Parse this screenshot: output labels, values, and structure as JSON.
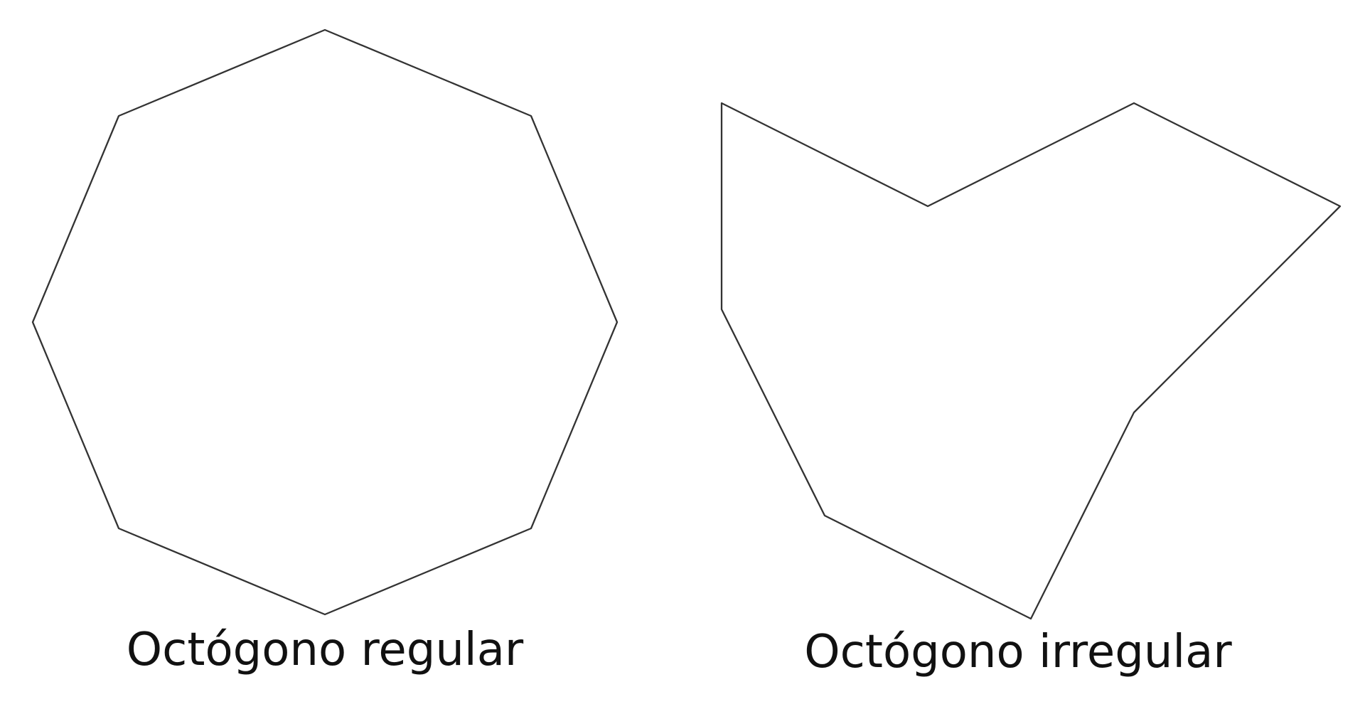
{
  "figure": {
    "regular_octagon": {
      "caption": "Octógono regular",
      "sides": 8
    },
    "irregular_octagon": {
      "caption": "Octógono irregular",
      "sides": 8
    }
  },
  "colors": {
    "background": "#ffffff",
    "stroke": "#333333",
    "caption": "#111111"
  }
}
